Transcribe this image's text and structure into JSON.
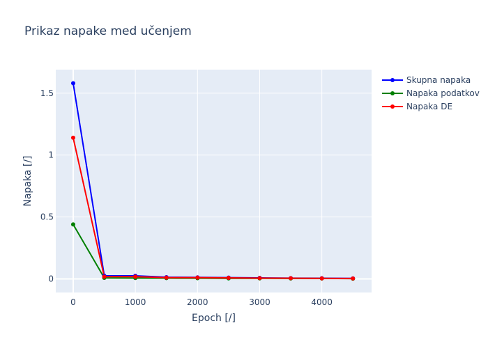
{
  "chart_data": {
    "type": "line",
    "title": "Prikaz napake med učenjem",
    "xlabel": "Epoch [/]",
    "ylabel": "Napaka [/]",
    "x": [
      0,
      500,
      1000,
      1500,
      2000,
      2500,
      3000,
      3500,
      4000,
      4500
    ],
    "xlim": [
      -280,
      4800
    ],
    "ylim": [
      -0.11,
      1.69
    ],
    "xticks": [
      0,
      1000,
      2000,
      3000,
      4000
    ],
    "xtick_labels": [
      "0",
      "1000",
      "2000",
      "3000",
      "4000"
    ],
    "yticks": [
      0,
      0.5,
      1,
      1.5
    ],
    "ytick_labels": [
      "0",
      "0.5",
      "1",
      "1.5"
    ],
    "grid": true,
    "legend_position": "top-right",
    "series": [
      {
        "name": "Skupna napaka",
        "color": "#0000ff",
        "values": [
          1.58,
          0.026,
          0.025,
          0.014,
          0.012,
          0.01,
          0.008,
          0.006,
          0.005,
          0.004
        ]
      },
      {
        "name": "Napaka podatkov",
        "color": "#008000",
        "values": [
          0.44,
          0.008,
          0.007,
          0.006,
          0.005,
          0.004,
          0.004,
          0.003,
          0.003,
          0.002
        ]
      },
      {
        "name": "Napaka DE",
        "color": "#ff0000",
        "values": [
          1.14,
          0.018,
          0.018,
          0.01,
          0.01,
          0.008,
          0.006,
          0.005,
          0.004,
          0.003
        ]
      }
    ]
  }
}
